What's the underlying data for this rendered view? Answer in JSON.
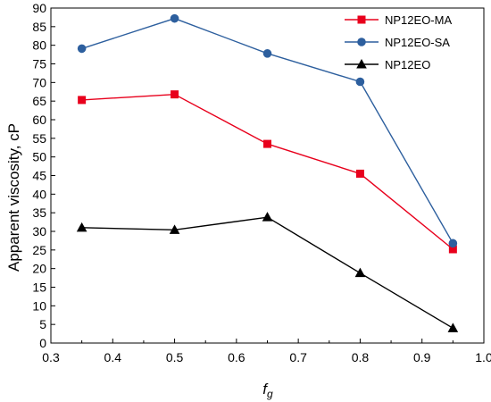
{
  "chart_data": {
    "type": "line",
    "title": "",
    "xlabel_main": "f",
    "xlabel_sub": "g",
    "ylabel": "Apparent viscosity, cP",
    "xlim": [
      0.3,
      1.0
    ],
    "ylim": [
      0,
      90
    ],
    "x_ticks": [
      "0.3",
      "0.4",
      "0.5",
      "0.6",
      "0.7",
      "0.8",
      "0.9",
      "1.0"
    ],
    "y_ticks": [
      "0",
      "5",
      "10",
      "15",
      "20",
      "25",
      "30",
      "35",
      "40",
      "45",
      "50",
      "55",
      "60",
      "65",
      "70",
      "75",
      "80",
      "85",
      "90"
    ],
    "grid": false,
    "legend_position": "top-right",
    "x": [
      0.35,
      0.5,
      0.65,
      0.8,
      0.95
    ],
    "series": [
      {
        "name": "NP12EO-MA",
        "color": "#e8001c",
        "marker": "square",
        "values": [
          65.3,
          66.8,
          53.5,
          45.5,
          25.2
        ]
      },
      {
        "name": "NP12EO-SA",
        "color": "#2d5f9e",
        "marker": "circle",
        "values": [
          79.1,
          87.2,
          77.8,
          70.2,
          26.8
        ]
      },
      {
        "name": "NP12EO",
        "color": "#000000",
        "marker": "triangle",
        "values": [
          31.0,
          30.4,
          33.8,
          18.8,
          4.0
        ]
      }
    ]
  }
}
